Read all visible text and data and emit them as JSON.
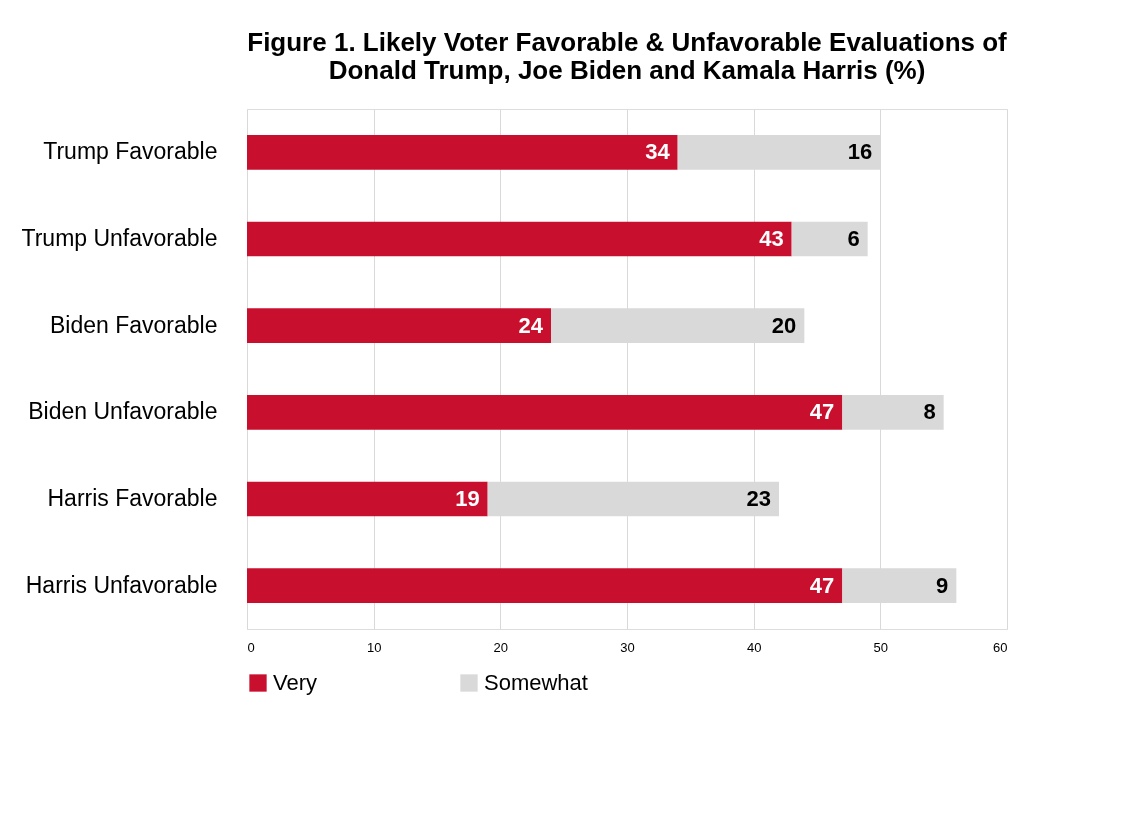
{
  "chart_data": {
    "type": "bar",
    "orientation": "horizontal",
    "stacked": true,
    "title": "Figure 1. Likely Voter Favorable & Unfavorable Evaluations of Donald Trump, Joe Biden and Kamala Harris (%)",
    "categories": [
      "Trump Favorable",
      "Trump Unfavorable",
      "Biden Favorable",
      "Biden Unfavorable",
      "Harris Favorable",
      "Harris Unfavorable"
    ],
    "series": [
      {
        "name": "Very",
        "color": "#c8102e",
        "values": [
          34,
          43,
          24,
          47,
          19,
          47
        ]
      },
      {
        "name": "Somewhat",
        "color": "#d9d9d9",
        "values": [
          16,
          6,
          20,
          8,
          23,
          9
        ]
      }
    ],
    "xlim": [
      0,
      60
    ],
    "xticks": [
      0,
      10,
      20,
      30,
      40,
      50,
      60
    ],
    "grid": "x",
    "legend": "bottom",
    "data_labels": true
  }
}
